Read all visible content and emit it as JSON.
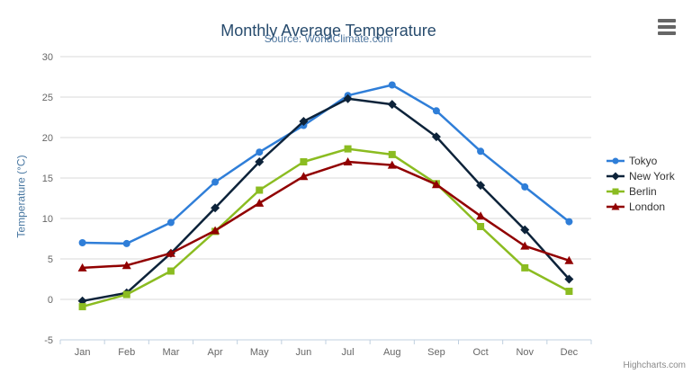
{
  "chart": {
    "credits_label": "Highcharts.com",
    "menu_icon": "hamburger-icon"
  },
  "chart_data": {
    "type": "line",
    "title": "Monthly Average Temperature",
    "subtitle": "Source: WorldClimate.com",
    "xlabel": "",
    "ylabel": "Temperature (°C)",
    "ylim": [
      -5,
      30
    ],
    "ytick_step": 5,
    "grid": true,
    "legend_position": "right",
    "categories": [
      "Jan",
      "Feb",
      "Mar",
      "Apr",
      "May",
      "Jun",
      "Jul",
      "Aug",
      "Sep",
      "Oct",
      "Nov",
      "Dec"
    ],
    "series": [
      {
        "name": "Tokyo",
        "marker": "circle",
        "color": "#2f7ed8",
        "values": [
          7.0,
          6.9,
          9.5,
          14.5,
          18.2,
          21.5,
          25.2,
          26.5,
          23.3,
          18.3,
          13.9,
          9.6
        ]
      },
      {
        "name": "New York",
        "marker": "diamond",
        "color": "#0d233a",
        "values": [
          -0.2,
          0.8,
          5.7,
          11.3,
          17.0,
          22.0,
          24.8,
          24.1,
          20.1,
          14.1,
          8.6,
          2.5
        ]
      },
      {
        "name": "Berlin",
        "marker": "square",
        "color": "#8bbc21",
        "values": [
          -0.9,
          0.6,
          3.5,
          8.4,
          13.5,
          17.0,
          18.6,
          17.9,
          14.3,
          9.0,
          3.9,
          1.0
        ]
      },
      {
        "name": "London",
        "marker": "triangle",
        "color": "#910000",
        "values": [
          3.9,
          4.2,
          5.7,
          8.5,
          11.9,
          15.2,
          17.0,
          16.6,
          14.2,
          10.3,
          6.6,
          4.8
        ]
      }
    ],
    "style_colors": {
      "grid": "#d8d8d8",
      "axis_line": "#c0d0e0",
      "tick_label": "#666666",
      "title": "#274b6d",
      "subtitle": "#4d759e",
      "axis_title": "#4877a1",
      "legend_text": "#333333",
      "credits": "#8a8a8a"
    }
  }
}
